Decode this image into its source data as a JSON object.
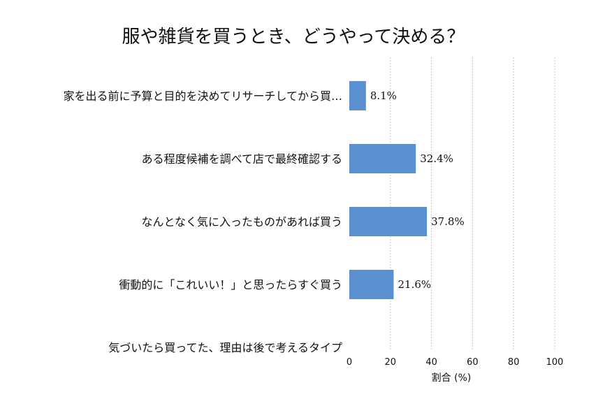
{
  "chart_data": {
    "type": "bar",
    "orientation": "horizontal",
    "title": "服や雑貨を買うとき、どうやって決める？",
    "xlabel": "割合 (%)",
    "ylabel": "",
    "xlim": [
      0,
      100
    ],
    "xticks": [
      "0",
      "20",
      "40",
      "60",
      "80",
      "100"
    ],
    "grid": "vertical-dashed",
    "categories": [
      "家を出る前に予算と目的を決めてリサーチしてから買…",
      "ある程度候補を調べて店で最終確認する",
      "なんとなく気に入ったものがあれば買う",
      "衝動的に「これいい！」と思ったらすぐ買う",
      "気づいたら買ってた、理由は後で考えるタイプ"
    ],
    "values": [
      8.1,
      32.4,
      37.8,
      21.6,
      0
    ],
    "value_labels": [
      "8.1%",
      "32.4%",
      "37.8%",
      "21.6%",
      ""
    ],
    "bar_color": "#5b8fd0"
  }
}
